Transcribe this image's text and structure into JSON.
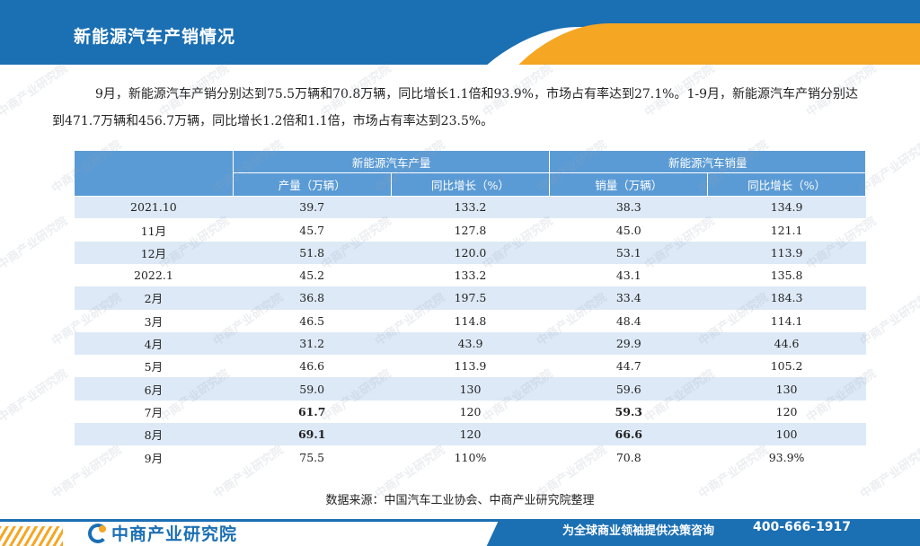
{
  "header": {
    "title": "新能源汽车产销情况"
  },
  "intro": "9月，新能源汽车产销分别达到75.5万辆和70.8万辆，同比增长1.1倍和93.9%，市场占有率达到27.1%。1-9月，新能源汽车产销分别达到471.7万辆和456.7万辆，同比增长1.2倍和1.1倍，市场占有率达到23.5%。",
  "table": {
    "group_headers": [
      "新能源汽车产量",
      "新能源汽车销量"
    ],
    "sub_headers": [
      "产量（万辆）",
      "同比增长（%）",
      "销量（万辆）",
      "同比增长（%）"
    ],
    "rows": [
      [
        "2021.10",
        "39.7",
        "133.2",
        "38.3",
        "134.9"
      ],
      [
        "11月",
        "45.7",
        "127.8",
        "45.0",
        "121.1"
      ],
      [
        "12月",
        "51.8",
        "120.0",
        "53.1",
        "113.9"
      ],
      [
        "2022.1",
        "45.2",
        "133.2",
        "43.1",
        "135.8"
      ],
      [
        "2月",
        "36.8",
        "197.5",
        "33.4",
        "184.3"
      ],
      [
        "3月",
        "46.5",
        "114.8",
        "48.4",
        "114.1"
      ],
      [
        "4月",
        "31.2",
        "43.9",
        "29.9",
        "44.6"
      ],
      [
        "5月",
        "46.6",
        "113.9",
        "44.7",
        "105.2"
      ],
      [
        "6月",
        "59.0",
        "130",
        "59.6",
        "130"
      ],
      [
        "7月",
        "61.7",
        "120",
        "59.3",
        "120"
      ],
      [
        "8月",
        "69.1",
        "120",
        "66.6",
        "100"
      ],
      [
        "9月",
        "75.5",
        "110%",
        "70.8",
        "93.9%"
      ]
    ]
  },
  "source": "数据来源：中国汽车工业协会、中商产业研究院整理",
  "footer": {
    "logo_text": "中商产业研究院",
    "slogan": "为全球商业领袖提供决策咨询",
    "phone": "400-666-1917"
  },
  "watermark": {
    "text": "中商产业研究院",
    "url": "www.askci.com/reports"
  },
  "colors": {
    "brand_blue": "#1b6fb3",
    "accent_orange": "#f5a623",
    "table_header": "#5b9bd5",
    "row_alt": "#dde9f6"
  }
}
